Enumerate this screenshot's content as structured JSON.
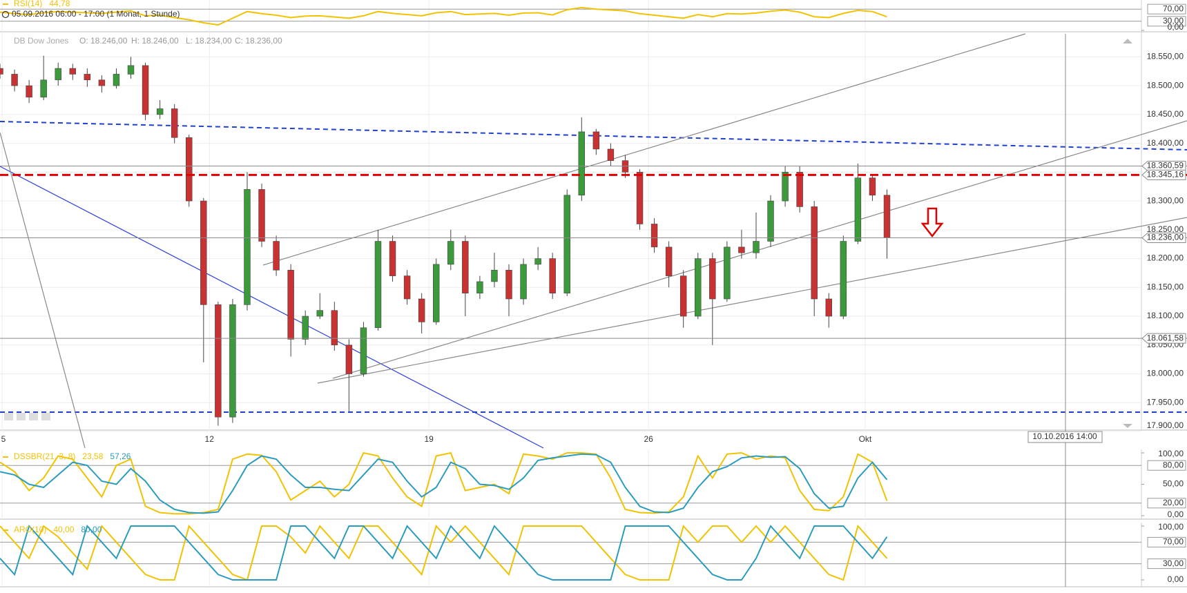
{
  "period": "05.09.2016 06:00 - 17:00 (1 Monat, 1 Stunde)",
  "crosshair_label": "10.10.2016 14:00",
  "chart_data": [
    {
      "type": "line",
      "name": "RSI(14)",
      "ylim": [
        0,
        100
      ],
      "yticks": [
        {
          "value": 70,
          "label": "70,00",
          "level": true
        },
        {
          "value": 30,
          "label": "30,00",
          "level": true
        },
        {
          "value": 0,
          "label": "0,00"
        }
      ],
      "series": [
        {
          "color": "#f2c200",
          "legend_value": "44,78",
          "values": [
            60,
            55,
            52,
            58,
            62,
            60,
            58,
            56,
            60,
            64,
            48,
            50,
            42,
            35,
            25,
            18,
            40,
            62,
            55,
            50,
            42,
            47,
            48,
            44,
            40,
            48,
            62,
            56,
            52,
            48,
            58,
            62,
            52,
            54,
            56,
            50,
            57,
            58,
            51,
            68,
            75,
            70,
            67,
            64,
            55,
            50,
            45,
            40,
            52,
            45,
            55,
            54,
            57,
            63,
            67,
            60,
            45,
            42,
            56,
            66,
            62,
            44.78
          ]
        }
      ]
    },
    {
      "type": "candlestick",
      "title": "DB Dow Jones",
      "ohlc": [
        "O: 18.246,00",
        "H: 18.246,00",
        "L: 18.234,00",
        "C: 18.236,00"
      ],
      "xlim": [
        0,
        78.5
      ],
      "xticks": [
        {
          "value": 0.15,
          "label": "5"
        },
        {
          "value": 14.4,
          "label": "12"
        },
        {
          "value": 29.5,
          "label": "19"
        },
        {
          "value": 44.6,
          "label": "26"
        },
        {
          "value": 59.5,
          "label": "Okt"
        }
      ],
      "ylim": [
        17900,
        18590
      ],
      "yticks": [
        {
          "value": 18550,
          "label": "18.550,00"
        },
        {
          "value": 18500,
          "label": "18.500,00"
        },
        {
          "value": 18450,
          "label": "18.450,00"
        },
        {
          "value": 18400,
          "label": "18.400,00"
        },
        {
          "value": 18350,
          "label": "18.350,00"
        },
        {
          "value": 18300,
          "label": "18.300,00"
        },
        {
          "value": 18250,
          "label": "18.250,00"
        },
        {
          "value": 18200,
          "label": "18.200,00"
        },
        {
          "value": 18150,
          "label": "18.150,00"
        },
        {
          "value": 18100,
          "label": "18.100,00"
        },
        {
          "value": 18050,
          "label": "18.050,00"
        },
        {
          "value": 18000,
          "label": "18.000,00"
        },
        {
          "value": 17950,
          "label": "17.950,00"
        },
        {
          "value": 17900,
          "label": "17.900,00"
        }
      ],
      "grid": true,
      "up_color": "#3c9a3c",
      "down_color": "#c83232",
      "open": [
        18530,
        18520,
        18500,
        18480,
        18510,
        18530,
        18520,
        18510,
        18500,
        18520,
        18535,
        18450,
        18460,
        18410,
        18300,
        18120,
        17925,
        18120,
        18320,
        18230,
        18180,
        18060,
        18100,
        18110,
        18050,
        18000,
        18080,
        18230,
        18170,
        18130,
        18090,
        18190,
        18230,
        18140,
        18160,
        18180,
        18130,
        18190,
        18200,
        18140,
        18310,
        18420,
        18390,
        18370,
        18350,
        18260,
        18220,
        18170,
        18100,
        18200,
        18130,
        18220,
        18210,
        18230,
        18300,
        18350,
        18290,
        18130,
        18100,
        18230,
        18340,
        18310
      ],
      "high": [
        18538,
        18528,
        18510,
        18552,
        18540,
        18538,
        18530,
        18518,
        18530,
        18550,
        18540,
        18475,
        18468,
        18415,
        18305,
        18125,
        18130,
        18350,
        18330,
        18240,
        18190,
        18110,
        18140,
        18125,
        18060,
        18090,
        18250,
        18240,
        18180,
        18140,
        18200,
        18250,
        18240,
        18170,
        18210,
        18190,
        18200,
        18220,
        18210,
        18320,
        18445,
        18425,
        18400,
        18380,
        18355,
        18270,
        18230,
        18180,
        18210,
        18210,
        18230,
        18250,
        18280,
        18310,
        18360,
        18360,
        18300,
        18140,
        18240,
        18365,
        18345,
        18320
      ],
      "low": [
        18512,
        18490,
        18470,
        18475,
        18500,
        18510,
        18498,
        18488,
        18495,
        18512,
        18440,
        18442,
        18400,
        18290,
        18020,
        17910,
        17915,
        18110,
        18220,
        18170,
        18030,
        18050,
        18095,
        18040,
        17935,
        17995,
        18075,
        18160,
        18120,
        18070,
        18085,
        18180,
        18100,
        18130,
        18150,
        18100,
        18120,
        18180,
        18130,
        18135,
        18300,
        18380,
        18360,
        18340,
        18250,
        18210,
        18150,
        18080,
        18095,
        18050,
        18125,
        18200,
        18200,
        18220,
        18290,
        18280,
        18100,
        18080,
        18095,
        18225,
        18300,
        18200
      ],
      "close": [
        18520,
        18500,
        18480,
        18510,
        18530,
        18520,
        18510,
        18500,
        18520,
        18535,
        18450,
        18460,
        18410,
        18300,
        18120,
        17925,
        18120,
        18320,
        18230,
        18180,
        18060,
        18100,
        18110,
        18050,
        18000,
        18080,
        18230,
        18170,
        18130,
        18090,
        18190,
        18230,
        18140,
        18160,
        18180,
        18130,
        18190,
        18200,
        18140,
        18310,
        18420,
        18390,
        18370,
        18350,
        18260,
        18220,
        18170,
        18100,
        18200,
        18130,
        18220,
        18210,
        18230,
        18300,
        18350,
        18290,
        18130,
        18100,
        18230,
        18340,
        18310,
        18236
      ],
      "levels": [
        {
          "value": 18360.59,
          "label": "18.360,59",
          "color": "#8a8a8a",
          "dashed": false
        },
        {
          "value": 18345.16,
          "label": "18.345,16",
          "color": "#e00000",
          "dashed": true
        },
        {
          "value": 18236,
          "label": "18.236,00",
          "color": "#8a8a8a",
          "dashed": false
        },
        {
          "value": 18061.58,
          "label": "18.061,58",
          "color": "#8a8a8a",
          "dashed": false
        }
      ]
    },
    {
      "type": "line",
      "name": "DSSBR(21, 3, 8)",
      "ylim": [
        0,
        100
      ],
      "yticks": [
        {
          "value": 100,
          "label": "100,00"
        },
        {
          "value": 80,
          "label": "80,00",
          "level": true
        },
        {
          "value": 50,
          "label": "50,00"
        },
        {
          "value": 20,
          "label": "20,00",
          "level": true
        },
        {
          "value": 0,
          "label": "0,00"
        }
      ],
      "series": [
        {
          "color": "#f2c200",
          "legend_value": "23,58",
          "values": [
            85,
            70,
            40,
            60,
            95,
            90,
            60,
            30,
            80,
            90,
            15,
            5,
            3,
            3,
            5,
            10,
            90,
            98,
            96,
            70,
            25,
            40,
            55,
            30,
            50,
            100,
            95,
            60,
            30,
            15,
            95,
            100,
            40,
            45,
            50,
            35,
            98,
            95,
            90,
            100,
            100,
            98,
            60,
            10,
            5,
            4,
            6,
            30,
            95,
            60,
            98,
            100,
            90,
            95,
            92,
            40,
            10,
            8,
            30,
            98,
            85,
            23.58
          ]
        },
        {
          "color": "#2a9bbf",
          "legend_value": "57,26",
          "values": [
            70,
            65,
            50,
            45,
            65,
            85,
            80,
            55,
            50,
            75,
            55,
            25,
            10,
            5,
            4,
            6,
            40,
            80,
            95,
            90,
            65,
            45,
            45,
            42,
            40,
            65,
            90,
            85,
            55,
            30,
            45,
            85,
            75,
            50,
            48,
            42,
            60,
            88,
            92,
            95,
            98,
            97,
            85,
            45,
            15,
            6,
            5,
            12,
            45,
            70,
            78,
            92,
            95,
            93,
            94,
            75,
            35,
            12,
            15,
            60,
            85,
            57.26
          ]
        }
      ]
    },
    {
      "type": "line",
      "name": "ARO(10)",
      "ylim": [
        0,
        100
      ],
      "yticks": [
        {
          "value": 100,
          "label": "100,00"
        },
        {
          "value": 70,
          "label": "70,00",
          "level": true
        },
        {
          "value": 30,
          "label": "30,00",
          "level": true
        },
        {
          "value": 0,
          "label": "0,00"
        }
      ],
      "series": [
        {
          "color": "#f2c200",
          "legend_value": "40,00",
          "values": [
            100,
            70,
            40,
            100,
            80,
            50,
            20,
            100,
            70,
            40,
            10,
            0,
            0,
            100,
            70,
            40,
            10,
            0,
            100,
            100,
            80,
            50,
            100,
            70,
            40,
            100,
            100,
            70,
            40,
            10,
            100,
            70,
            100,
            70,
            40,
            10,
            100,
            100,
            100,
            100,
            100,
            70,
            40,
            10,
            0,
            0,
            0,
            100,
            70,
            100,
            100,
            70,
            100,
            70,
            100,
            70,
            40,
            10,
            0,
            100,
            70,
            40
          ]
        },
        {
          "color": "#2a9bbf",
          "legend_value": "80,00",
          "values": [
            40,
            10,
            100,
            70,
            40,
            10,
            100,
            70,
            40,
            100,
            100,
            100,
            100,
            70,
            40,
            10,
            0,
            0,
            0,
            0,
            100,
            100,
            70,
            40,
            100,
            100,
            70,
            40,
            100,
            70,
            40,
            100,
            70,
            40,
            100,
            70,
            40,
            10,
            0,
            0,
            0,
            0,
            0,
            100,
            100,
            100,
            100,
            70,
            40,
            10,
            0,
            0,
            40,
            100,
            70,
            40,
            100,
            100,
            100,
            70,
            40,
            80
          ]
        }
      ]
    }
  ]
}
